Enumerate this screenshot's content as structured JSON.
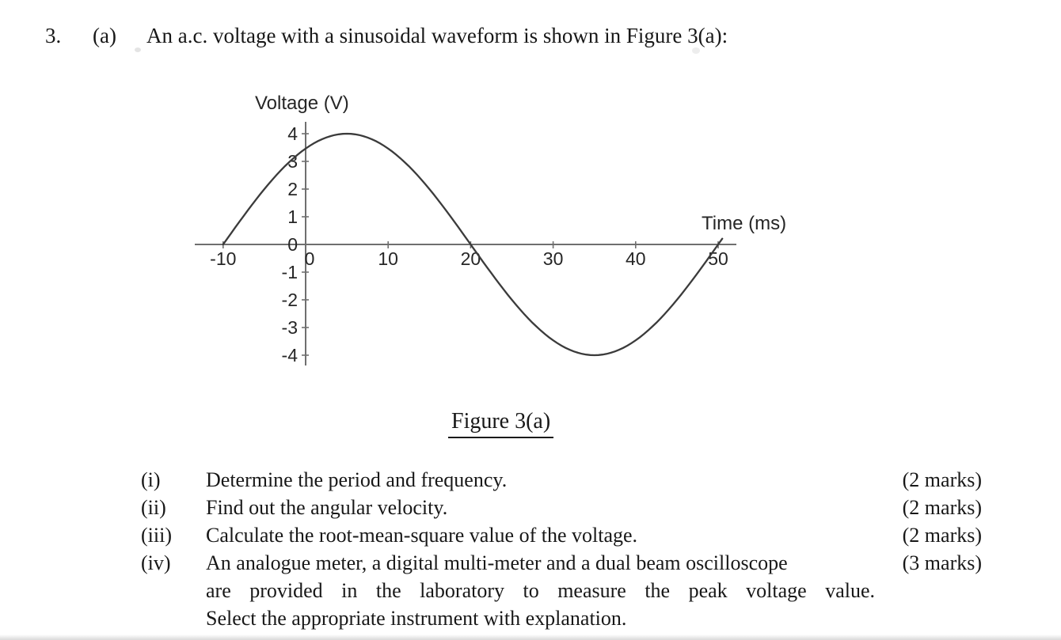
{
  "header": {
    "question_number": "3.",
    "part_label": "(a)",
    "text": "An a.c. voltage with a sinusoidal waveform is shown in Figure 3(a):"
  },
  "figure": {
    "caption": "Figure 3(a)"
  },
  "chart_data": {
    "type": "line",
    "title": "",
    "xlabel": "Time (ms)",
    "ylabel": "Voltage (V)",
    "x_ticks": [
      -10,
      0,
      10,
      20,
      30,
      40,
      50
    ],
    "y_ticks": [
      4,
      3,
      2,
      1,
      0,
      -1,
      -2,
      -3,
      -4
    ],
    "xlim": [
      -13,
      52
    ],
    "ylim": [
      -4.5,
      4.5
    ],
    "grid": false,
    "legend": false,
    "series": [
      {
        "name": "sinusoidal a.c. voltage",
        "waveform": "sine",
        "amplitude_V": 4,
        "period_ms": 60,
        "t_start_ms": -10,
        "t_end_ms": 50,
        "zero_crossings_ms": [
          -10,
          20,
          50
        ],
        "peak": {
          "t_ms": 5,
          "v_V": 4
        },
        "trough": {
          "t_ms": 35,
          "v_V": -4
        },
        "x": [
          -10,
          -5,
          0,
          5,
          10,
          15,
          20,
          25,
          30,
          35,
          40,
          45,
          50
        ],
        "y": [
          0,
          2,
          3.46,
          4,
          3.46,
          2,
          0,
          -2,
          -3.46,
          -4,
          -3.46,
          -2,
          0
        ]
      }
    ]
  },
  "subquestions": [
    {
      "label": "(i)",
      "lines": [
        "Determine the period and frequency."
      ],
      "marks": "(2 marks)"
    },
    {
      "label": "(ii)",
      "lines": [
        "Find out the angular velocity."
      ],
      "marks": "(2 marks)"
    },
    {
      "label": "(iii)",
      "lines": [
        "Calculate the root-mean-square value of the voltage."
      ],
      "marks": "(2 marks)"
    },
    {
      "label": "(iv)",
      "lines": [
        "An analogue meter, a digital multi-meter and a dual beam oscilloscope",
        "are provided in the laboratory to measure the peak voltage value.",
        "Select the appropriate instrument with explanation."
      ],
      "marks": "(3 marks)"
    }
  ]
}
